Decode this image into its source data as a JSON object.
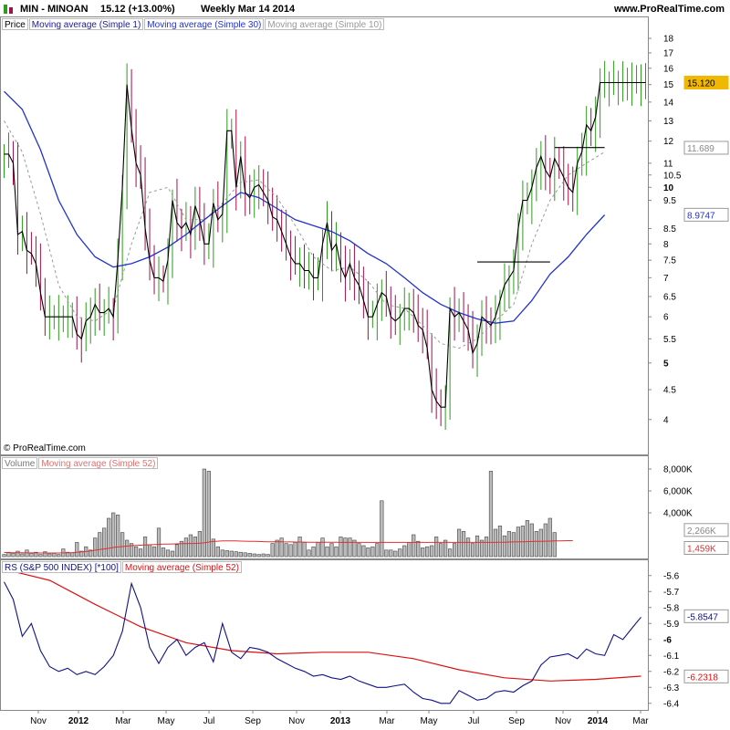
{
  "header": {
    "symbol": "MIN - MINOAN",
    "quote": "15.12 (+13.00%)",
    "period": "Weekly  Mar 14 2014",
    "site": "www.ProRealTime.com"
  },
  "copyright": "© ProRealTime.com",
  "colors": {
    "up": "#2e9a1e",
    "down": "#a0104a",
    "price": "#000000",
    "sma30": "#2233cc",
    "sma10": "#999999",
    "volume_fill": "#bbbbbb",
    "vol_ma": "#e03030",
    "rs": "#111188",
    "rs_ma": "#dd1111",
    "last_tag": "#f0b800"
  },
  "chart_data": [
    {
      "type": "line",
      "panel": "price",
      "legend": [
        "Price",
        "Moving average (Simple 1)",
        "Moving average (Simple 30)",
        "Moving average (Simple 10)"
      ],
      "x_tick_labels": [
        "Nov",
        "2012",
        "Mar",
        "May",
        "Jul",
        "Sep",
        "Nov",
        "2013",
        "Mar",
        "May",
        "Jul",
        "Sep",
        "Nov",
        "2014",
        "Mar"
      ],
      "y_tick_labels": [
        "4",
        "4.5",
        "5",
        "5.5",
        "6",
        "6.5",
        "7",
        "7.5",
        "8",
        "8.5",
        "9.5",
        "10",
        "10.5",
        "11",
        "12",
        "13",
        "14",
        "15",
        "16",
        "17",
        "18"
      ],
      "scale": "log",
      "ylim": [
        3.8,
        18.8
      ],
      "last_values": {
        "price": "15.120",
        "resistance": "11.689",
        "sma30": "8.9747"
      },
      "price": {
        "x": [
          0,
          1,
          2,
          3,
          4,
          5,
          6,
          7,
          8,
          9,
          10,
          11,
          12,
          13,
          14,
          15,
          16,
          17,
          18,
          19,
          20,
          21,
          22,
          23,
          24,
          25,
          26,
          27,
          28,
          29,
          30,
          31,
          32,
          33,
          34,
          35,
          36,
          37,
          38,
          39,
          40,
          41,
          42,
          43,
          44,
          45,
          46,
          47,
          48,
          49,
          50,
          51,
          52,
          53,
          54,
          55,
          56,
          57,
          58,
          59,
          60,
          61,
          62,
          63,
          64,
          65,
          66,
          67,
          68,
          69,
          70,
          71,
          72,
          73,
          74,
          75,
          76,
          77,
          78,
          79,
          80,
          81,
          82,
          83,
          84,
          85,
          86,
          87,
          88,
          89,
          90,
          91,
          92,
          93,
          94,
          95,
          96,
          97,
          98,
          99,
          100,
          101,
          102,
          103,
          104,
          105,
          106,
          107,
          108,
          109,
          110,
          111,
          112,
          113,
          114,
          115,
          116,
          117,
          118,
          119,
          120,
          121,
          122,
          123,
          124,
          125,
          126,
          127,
          128,
          129,
          130,
          131,
          132,
          133,
          134,
          135,
          136,
          137,
          138,
          139,
          140,
          141
        ],
        "values": [
          11.4,
          11.4,
          11.0,
          8.3,
          8.4,
          7.8,
          7.7,
          7.4,
          6.6,
          6.0,
          6.0,
          6.0,
          6.0,
          6.0,
          6.0,
          6.0,
          5.6,
          5.5,
          5.9,
          6.0,
          6.3,
          6.1,
          6.1,
          6.2,
          6.0,
          7.5,
          10.0,
          15.0,
          12.6,
          11.0,
          10.5,
          8.5,
          7.5,
          7.0,
          7.0,
          6.9,
          7.5,
          9.5,
          8.7,
          8.5,
          8.7,
          8.3,
          9.3,
          8.8,
          8.0,
          8.0,
          9.4,
          8.8,
          9.0,
          12.5,
          12.5,
          10.0,
          11.3,
          9.8,
          9.6,
          10.0,
          10.1,
          9.8,
          9.5,
          8.9,
          8.8,
          8.4,
          8.0,
          7.6,
          7.4,
          7.4,
          7.2,
          7.2,
          7.0,
          7.0,
          8.0,
          8.7,
          7.8,
          8.0,
          7.3,
          7.0,
          7.4,
          7.0,
          6.8,
          6.4,
          6.0,
          6.0,
          6.3,
          6.6,
          6.5,
          6.0,
          5.9,
          6.0,
          6.2,
          6.2,
          6.1,
          5.8,
          5.7,
          5.3,
          4.5,
          4.3,
          4.2,
          4.2,
          6.2,
          6.0,
          6.1,
          5.9,
          5.7,
          5.2,
          5.4,
          6.0,
          5.9,
          5.8,
          6.0,
          6.4,
          6.8,
          7.0,
          7.2,
          8.5,
          9.5,
          9.5,
          10.0,
          10.8,
          11.3,
          10.7,
          10.4,
          11.2,
          10.8,
          10.4,
          10.0,
          9.8,
          11.0,
          11.5,
          12.8,
          12.5,
          13.2,
          15.12,
          15.12,
          15.12,
          15.12,
          15.12,
          15.12,
          15.12,
          15.12,
          15.12,
          15.12,
          15.12
        ]
      },
      "sma30": {
        "x": [
          0,
          4,
          8,
          12,
          16,
          20,
          24,
          28,
          32,
          36,
          40,
          44,
          48,
          52,
          56,
          60,
          64,
          68,
          72,
          76,
          80,
          84,
          88,
          92,
          96,
          100,
          104,
          108,
          112,
          116,
          120,
          124,
          128,
          132
        ],
        "values": [
          14.6,
          13.6,
          11.6,
          9.5,
          8.3,
          7.6,
          7.3,
          7.4,
          7.6,
          7.9,
          8.3,
          8.8,
          9.3,
          9.8,
          9.6,
          9.2,
          8.8,
          8.6,
          8.4,
          8.1,
          7.7,
          7.4,
          7.0,
          6.6,
          6.3,
          6.1,
          5.95,
          5.85,
          5.9,
          6.4,
          7.1,
          7.6,
          8.3,
          8.97
        ]
      },
      "sma10": {
        "x": [
          0,
          4,
          8,
          12,
          16,
          20,
          24,
          28,
          32,
          36,
          40,
          44,
          48,
          52,
          56,
          60,
          64,
          68,
          72,
          76,
          80,
          84,
          88,
          92,
          96,
          100,
          104,
          108,
          112,
          116,
          120,
          124,
          128,
          132
        ],
        "values": [
          13.0,
          11.5,
          9.0,
          6.8,
          6.0,
          5.9,
          6.2,
          8.0,
          9.8,
          10.0,
          8.8,
          8.8,
          9.4,
          10.2,
          10.3,
          9.6,
          8.6,
          7.6,
          7.2,
          7.3,
          6.9,
          6.3,
          6.2,
          5.8,
          5.4,
          5.3,
          5.5,
          5.9,
          6.3,
          8.0,
          9.5,
          10.5,
          11.0,
          11.5
        ]
      },
      "resistance_lines": [
        {
          "x0": 104,
          "x1": 120,
          "value": 7.45
        },
        {
          "x0": 121,
          "x1": 132,
          "value": 11.7
        }
      ]
    },
    {
      "type": "bar",
      "panel": "volume",
      "legend": [
        "Volume",
        "Moving average (Simple 52)"
      ],
      "y_tick_labels": [
        "4,000K",
        "6,000K",
        "8,000K"
      ],
      "ylim": [
        0,
        9000
      ],
      "last_values": {
        "volume": "2,266K",
        "ma52": "1,459K"
      },
      "values": [
        200,
        400,
        300,
        500,
        250,
        600,
        300,
        400,
        200,
        450,
        250,
        300,
        200,
        700,
        400,
        350,
        1300,
        500,
        900,
        600,
        1700,
        2200,
        2600,
        3500,
        4000,
        3800,
        2200,
        1500,
        1200,
        900,
        700,
        1800,
        1100,
        900,
        2600,
        800,
        600,
        500,
        1100,
        1400,
        1700,
        2000,
        1800,
        2300,
        8000,
        7800,
        1600,
        900,
        600,
        550,
        500,
        450,
        400,
        350,
        300,
        250,
        200,
        250,
        200,
        1200,
        1500,
        1700,
        1200,
        1100,
        1300,
        1800,
        1300,
        600,
        900,
        1300,
        1700,
        900,
        1200,
        900,
        1800,
        1700,
        1700,
        1500,
        1200,
        1000,
        800,
        900,
        1200,
        5100,
        600,
        600,
        500,
        700,
        1000,
        1300,
        2000,
        1400,
        800,
        900,
        1000,
        1800,
        1200,
        1500,
        700,
        1200,
        2500,
        2300,
        1700,
        1200,
        1900,
        1500,
        1800,
        7800,
        2500,
        2800,
        1900,
        2300,
        2200,
        2700,
        2800,
        3300,
        3000,
        2300,
        2500,
        3000,
        3500,
        2200
      ],
      "ma52": [
        380,
        370,
        360,
        355,
        350,
        345,
        340,
        338,
        335,
        332,
        330,
        330,
        335,
        340,
        350,
        370,
        400,
        430,
        470,
        520,
        580,
        640,
        700,
        760,
        830,
        880,
        920,
        960,
        1000,
        1020,
        1040,
        1060,
        1080,
        1100,
        1120,
        1140,
        1150,
        1160,
        1170,
        1180,
        1190,
        1200,
        1210,
        1230,
        1260,
        1330,
        1380,
        1410,
        1430,
        1440,
        1440,
        1430,
        1420,
        1410,
        1400,
        1390,
        1380,
        1370,
        1360,
        1350,
        1350,
        1350,
        1345,
        1340,
        1335,
        1330,
        1325,
        1320,
        1318,
        1315,
        1312,
        1310,
        1308,
        1306,
        1304,
        1302,
        1300,
        1300,
        1300,
        1300,
        1300,
        1300,
        1300,
        1300,
        1300,
        1300,
        1300,
        1300,
        1300,
        1300,
        1300,
        1300,
        1300,
        1300,
        1300,
        1300,
        1300,
        1300,
        1300,
        1300,
        1300,
        1300,
        1300,
        1300,
        1300,
        1300,
        1300,
        1300,
        1300,
        1310,
        1320,
        1330,
        1340,
        1350,
        1360,
        1370,
        1380,
        1390,
        1400,
        1410,
        1420,
        1430,
        1440,
        1450,
        1455,
        1459
      ]
    },
    {
      "type": "line",
      "panel": "relative-strength",
      "legend": [
        "RS (S&P 500 INDEX) [*100]",
        "Moving average (Simple 52)"
      ],
      "y_tick_labels": [
        "-5.6",
        "-5.7",
        "-5.8",
        "-5.9",
        "-6",
        "-6.1",
        "-6.2",
        "-6.3",
        "-6.4"
      ],
      "ylim": [
        -6.43,
        -5.55
      ],
      "last_values": {
        "rs": "-5.8547",
        "ma52": "-6.2318"
      },
      "rs": {
        "x": [
          0,
          2,
          4,
          6,
          8,
          10,
          12,
          14,
          16,
          18,
          20,
          22,
          24,
          26,
          28,
          30,
          32,
          34,
          36,
          38,
          40,
          42,
          44,
          46,
          48,
          50,
          52,
          54,
          56,
          58,
          60,
          62,
          64,
          66,
          68,
          70,
          72,
          74,
          76,
          78,
          80,
          82,
          84,
          86,
          88,
          90,
          92,
          94,
          96,
          98,
          100,
          102,
          104,
          106,
          108,
          110,
          112,
          114,
          116,
          118,
          120,
          122,
          124,
          126,
          128,
          130,
          132,
          134,
          136,
          138,
          140
        ],
        "values": [
          -5.64,
          -5.75,
          -5.98,
          -5.9,
          -6.07,
          -6.17,
          -6.2,
          -6.18,
          -6.22,
          -6.2,
          -6.22,
          -6.17,
          -6.1,
          -5.95,
          -5.65,
          -5.8,
          -6.05,
          -6.15,
          -6.05,
          -6.0,
          -6.1,
          -6.05,
          -6.02,
          -6.14,
          -5.9,
          -6.08,
          -6.12,
          -6.05,
          -6.06,
          -6.08,
          -6.12,
          -6.15,
          -6.18,
          -6.2,
          -6.23,
          -6.22,
          -6.24,
          -6.25,
          -6.23,
          -6.26,
          -6.28,
          -6.3,
          -6.3,
          -6.29,
          -6.28,
          -6.33,
          -6.37,
          -6.38,
          -6.4,
          -6.4,
          -6.32,
          -6.35,
          -6.38,
          -6.37,
          -6.33,
          -6.32,
          -6.33,
          -6.29,
          -6.26,
          -6.16,
          -6.11,
          -6.1,
          -6.09,
          -6.12,
          -6.06,
          -6.09,
          -6.1,
          -5.97,
          -6.0,
          -5.93,
          -5.86
        ]
      },
      "ma52": {
        "x": [
          0,
          10,
          20,
          30,
          40,
          50,
          60,
          70,
          80,
          90,
          100,
          110,
          120,
          130,
          140
        ],
        "values": [
          -5.56,
          -5.63,
          -5.78,
          -5.92,
          -6.02,
          -6.07,
          -6.09,
          -6.08,
          -6.08,
          -6.12,
          -6.19,
          -6.24,
          -6.26,
          -6.25,
          -6.23
        ]
      }
    }
  ]
}
